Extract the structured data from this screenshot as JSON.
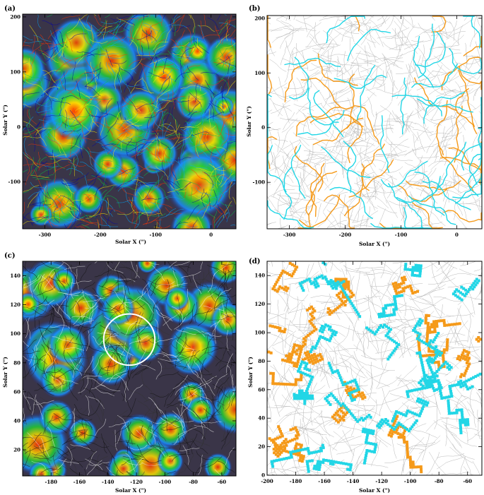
{
  "chart_data": [
    {
      "panel": "(a)",
      "type": "heatmap",
      "xlabel": "Solar X (\")",
      "ylabel": "Solar Y (\")",
      "xlim": [
        -340,
        45
      ],
      "ylim": [
        -185,
        205
      ],
      "x_ticks": [
        -300,
        -200,
        -100,
        0
      ],
      "y_ticks": [
        -100,
        0,
        100,
        200
      ],
      "colors": {
        "field_lines": [
          "#0000aa",
          "#00aaff",
          "#00cc44",
          "#ffee00",
          "#ff3300"
        ]
      }
    },
    {
      "panel": "(b)",
      "type": "line",
      "xlabel": "Solar X (\")",
      "ylabel": "Solar Y (\")",
      "xlim": [
        -340,
        45
      ],
      "ylim": [
        -185,
        205
      ],
      "x_ticks": [
        -300,
        -200,
        -100,
        0
      ],
      "y_ticks": [
        -100,
        0,
        100,
        200
      ],
      "colors": {
        "series_1": "#f59a1a",
        "series_2": "#22d6e6",
        "background_lines": "#bbbbbb"
      }
    },
    {
      "panel": "(c)",
      "type": "heatmap",
      "xlabel": "Solar X (\")",
      "ylabel": "Solar Y (\")",
      "xlim": [
        -200,
        -50
      ],
      "ylim": [
        2,
        150
      ],
      "x_ticks": [
        -180,
        -160,
        -140,
        -120,
        -100,
        -80,
        -60
      ],
      "y_ticks": [
        20,
        40,
        60,
        80,
        100,
        120,
        140
      ],
      "annotations": [
        {
          "shape": "circle",
          "center": [
            -125,
            96
          ],
          "radius": 18,
          "color": "#ffffff"
        }
      ],
      "colors": {
        "field_lines": [
          "#0000aa",
          "#00aaff",
          "#00cc44",
          "#ffee00",
          "#ff3300"
        ]
      }
    },
    {
      "panel": "(d)",
      "type": "scatter",
      "xlabel": "Solar X (\")",
      "ylabel": "Solar Y (\")",
      "xlim": [
        -200,
        -50
      ],
      "ylim": [
        0,
        150
      ],
      "x_ticks": [
        -200,
        -180,
        -160,
        -140,
        -120,
        -100,
        -80,
        -60
      ],
      "y_ticks": [
        0,
        20,
        40,
        60,
        80,
        100,
        120,
        140
      ],
      "colors": {
        "series_1": "#f59a1a",
        "series_2": "#22d6e6",
        "background_lines": "#bbbbbb"
      }
    }
  ]
}
